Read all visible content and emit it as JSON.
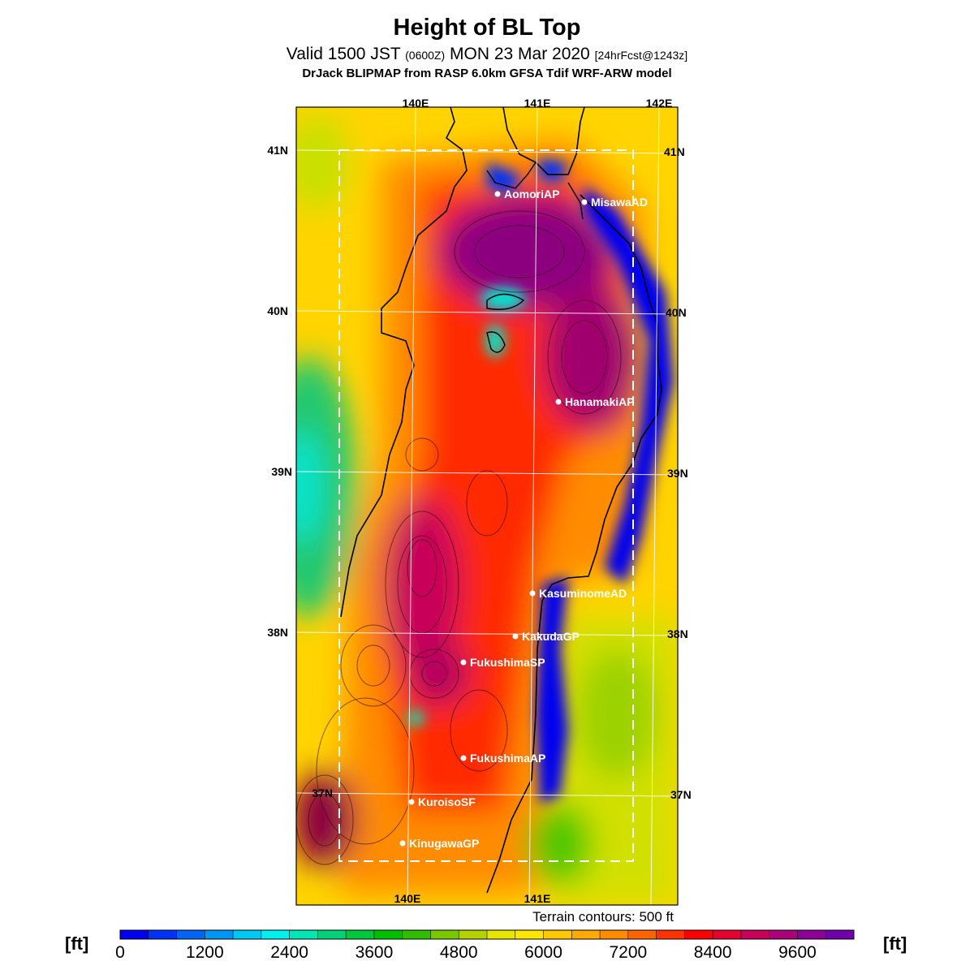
{
  "header": {
    "title": "Height of BL Top",
    "valid_prefix": "Valid 1500 JST",
    "valid_utc": "(0600Z)",
    "valid_date": "MON 23 Mar 2020",
    "forecast": "[24hrFcst@1243z]",
    "model": "DrJack BLIPMAP from RASP 6.0km GFSA Tdif WRF-ARW model"
  },
  "map": {
    "lon_labels": [
      "140E",
      "141E",
      "142E"
    ],
    "lat_labels": [
      "41N",
      "40N",
      "39N",
      "38N",
      "37N"
    ],
    "stations": [
      {
        "name": "AomoriAP"
      },
      {
        "name": "MisawaAD"
      },
      {
        "name": "HanamakiAP"
      },
      {
        "name": "KasuminomeAD"
      },
      {
        "name": "KakudaGP"
      },
      {
        "name": "FukushimaSP"
      },
      {
        "name": "FukushimaAP"
      },
      {
        "name": "KuroisoSF"
      },
      {
        "name": "KinugawaGP"
      }
    ],
    "terrain_note": "Terrain contours: 500 ft"
  },
  "colorbar": {
    "unit": "[ft]",
    "ticks": [
      "0",
      "1200",
      "2400",
      "3600",
      "4800",
      "6000",
      "7200",
      "8400",
      "9600"
    ],
    "colors": [
      "#0000f0",
      "#0032f5",
      "#0064f5",
      "#0096f5",
      "#00c8f5",
      "#00f0f0",
      "#00e6b4",
      "#00d278",
      "#00c83c",
      "#00be00",
      "#32be00",
      "#78c800",
      "#b4d200",
      "#e6e600",
      "#ffe600",
      "#ffc800",
      "#ffaa00",
      "#ff8c00",
      "#ff6400",
      "#ff3200",
      "#ff0000",
      "#e60032",
      "#c8005a",
      "#aa0078",
      "#8c0096",
      "#6e00aa"
    ]
  }
}
